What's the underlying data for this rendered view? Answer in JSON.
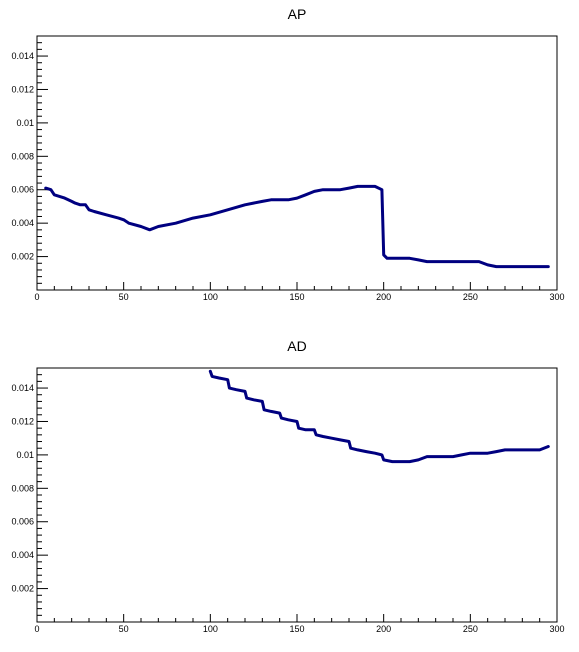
{
  "chart_data": [
    {
      "type": "line",
      "title": "AP",
      "xlabel": "",
      "ylabel": "",
      "xlim": [
        0,
        300
      ],
      "ylim": [
        0,
        0.0152
      ],
      "xticks": [
        0,
        50,
        100,
        150,
        200,
        250,
        300
      ],
      "xtick_labels": [
        "0",
        "50",
        "100",
        "150",
        "200",
        "250",
        "300"
      ],
      "yticks": [
        0.002,
        0.004,
        0.006,
        0.008,
        0.01,
        0.012,
        0.014
      ],
      "ytick_labels": [
        "0.002",
        "0.004",
        "0.006",
        "0.008",
        "0.01",
        "0.012",
        "0.014"
      ],
      "series": [
        {
          "color": "#000080",
          "x": [
            5,
            8,
            10,
            13,
            16,
            20,
            22,
            25,
            28,
            30,
            33,
            40,
            47,
            50,
            53,
            60,
            65,
            70,
            80,
            90,
            100,
            110,
            120,
            130,
            135,
            140,
            145,
            150,
            155,
            160,
            165,
            170,
            175,
            180,
            185,
            190,
            195,
            199,
            200,
            202,
            205,
            210,
            215,
            220,
            225,
            230,
            240,
            250,
            255,
            260,
            265,
            270,
            280,
            290,
            295
          ],
          "y": [
            0.0061,
            0.006,
            0.0057,
            0.0056,
            0.0055,
            0.0053,
            0.0052,
            0.0051,
            0.0051,
            0.0048,
            0.0047,
            0.0045,
            0.0043,
            0.0042,
            0.004,
            0.0038,
            0.0036,
            0.0038,
            0.004,
            0.0043,
            0.0045,
            0.0048,
            0.0051,
            0.0053,
            0.0054,
            0.0054,
            0.0054,
            0.0055,
            0.0057,
            0.0059,
            0.006,
            0.006,
            0.006,
            0.0061,
            0.0062,
            0.0062,
            0.0062,
            0.006,
            0.0021,
            0.0019,
            0.0019,
            0.0019,
            0.0019,
            0.0018,
            0.0017,
            0.0017,
            0.0017,
            0.0017,
            0.0017,
            0.0015,
            0.0014,
            0.0014,
            0.0014,
            0.0014,
            0.0014
          ]
        }
      ]
    },
    {
      "type": "line",
      "title": "AD",
      "xlabel": "",
      "ylabel": "",
      "xlim": [
        0,
        300
      ],
      "ylim": [
        0,
        0.0152
      ],
      "xticks": [
        0,
        50,
        100,
        150,
        200,
        250,
        300
      ],
      "xtick_labels": [
        "0",
        "50",
        "100",
        "150",
        "200",
        "250",
        "300"
      ],
      "yticks": [
        0.002,
        0.004,
        0.006,
        0.008,
        0.01,
        0.012,
        0.014
      ],
      "ytick_labels": [
        "0.002",
        "0.004",
        "0.006",
        "0.008",
        "0.01",
        "0.012",
        "0.014"
      ],
      "series": [
        {
          "color": "#000080",
          "x": [
            100,
            101,
            105,
            110,
            111,
            115,
            120,
            121,
            125,
            130,
            131,
            135,
            140,
            141,
            145,
            150,
            151,
            155,
            160,
            161,
            165,
            170,
            175,
            180,
            181,
            185,
            190,
            195,
            199,
            200,
            205,
            210,
            215,
            220,
            225,
            230,
            240,
            245,
            250,
            255,
            260,
            265,
            270,
            280,
            290,
            295
          ],
          "y": [
            0.015,
            0.0147,
            0.0146,
            0.0145,
            0.014,
            0.0139,
            0.0138,
            0.0134,
            0.0133,
            0.0132,
            0.0127,
            0.0126,
            0.0125,
            0.0122,
            0.0121,
            0.012,
            0.0116,
            0.0115,
            0.0115,
            0.0112,
            0.0111,
            0.011,
            0.0109,
            0.0108,
            0.0104,
            0.0103,
            0.0102,
            0.0101,
            0.01,
            0.0097,
            0.0096,
            0.0096,
            0.0096,
            0.0097,
            0.0099,
            0.0099,
            0.0099,
            0.01,
            0.0101,
            0.0101,
            0.0101,
            0.0102,
            0.0103,
            0.0103,
            0.0103,
            0.0105
          ]
        }
      ]
    }
  ]
}
